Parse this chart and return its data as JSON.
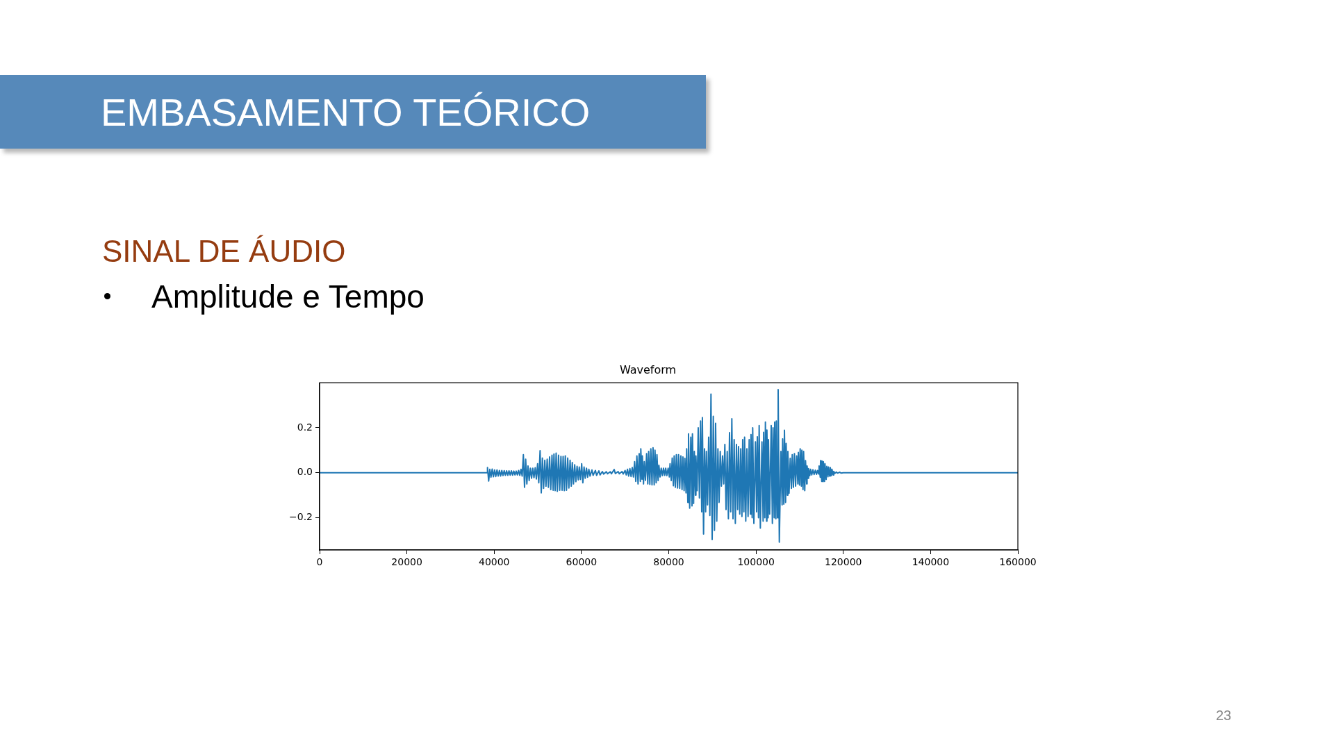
{
  "chart_data": {
    "type": "line",
    "title": "Waveform",
    "annotations": [
      "EMBASAMENTO TEÓRICO",
      "SINAL DE ÁUDIO",
      "Amplitude e Tempo",
      "23"
    ],
    "xlim": [
      0,
      160000
    ],
    "xticks": [
      0,
      20000,
      40000,
      60000,
      80000,
      100000,
      120000,
      140000,
      160000
    ],
    "ylim": [
      -0.344,
      0.4
    ],
    "yticks": [
      {
        "value": -0.2,
        "label": "−0.2"
      },
      {
        "value": 0,
        "label": "0.0"
      },
      {
        "value": 0.2,
        "label": "0.2"
      }
    ],
    "x": [
      0,
      38400,
      38470,
      38740,
      39000,
      39270,
      39550,
      39820,
      40100,
      40370,
      40650,
      40920,
      41200,
      41470,
      41750,
      42020,
      42300,
      42570,
      42850,
      43120,
      43400,
      43670,
      43950,
      44220,
      44500,
      44770,
      45050,
      45320,
      45600,
      45870,
      46150,
      46420,
      46690,
      46960,
      47220,
      47490,
      47750,
      48020,
      48300,
      48570,
      48850,
      49120,
      49400,
      49670,
      49950,
      50220,
      50520,
      50790,
      51050,
      51320,
      51600,
      51870,
      52150,
      52420,
      52700,
      52970,
      53250,
      53520,
      53700,
      53970,
      54200,
      54470,
      54750,
      55020,
      55300,
      55570,
      55800,
      56070,
      56300,
      56570,
      56850,
      57120,
      57400,
      57670,
      57900,
      58170,
      58450,
      58720,
      59000,
      59270,
      59500,
      59770,
      60050,
      60320,
      60600,
      60870,
      61150,
      61420,
      61700,
      61970,
      62400,
      62670,
      63200,
      63470,
      64000,
      64270,
      64800,
      65070,
      65700,
      65970,
      66600,
      66870,
      67500,
      67770,
      68400,
      68670,
      69300,
      69570,
      70000,
      70270,
      70550,
      70820,
      71100,
      71370,
      71640,
      71910,
      72180,
      72450,
      72700,
      72970,
      73230,
      73500,
      73600,
      73870,
      73950,
      74220,
      74400,
      74670,
      74930,
      75200,
      75400,
      75670,
      75900,
      76170,
      76400,
      76670,
      76850,
      77120,
      77300,
      77570,
      77750,
      78020,
      78280,
      78550,
      78800,
      79070,
      79300,
      79570,
      79870,
      80140,
      80300,
      80570,
      80800,
      81070,
      81250,
      81520,
      81750,
      82020,
      82250,
      82520,
      82780,
      83050,
      83250,
      83520,
      83700,
      83970,
      84110,
      84380,
      84530,
      84800,
      85060,
      85330,
      85430,
      85700,
      85860,
      86130,
      86230,
      86500,
      86760,
      87030,
      87290,
      87560,
      87710,
      87980,
      88190,
      88460,
      88620,
      88890,
      89150,
      89420,
      89680,
      89950,
      90210,
      90480,
      90740,
      91010,
      91270,
      91540,
      91800,
      92070,
      92330,
      92600,
      92860,
      93130,
      93400,
      93670,
      93930,
      94200,
      94460,
      94730,
      94990,
      95260,
      95520,
      95790,
      96000,
      96270,
      96500,
      96770,
      96950,
      97220,
      97380,
      97650,
      97910,
      98180,
      98440,
      98710,
      98850,
      99120,
      99240,
      99510,
      99870,
      100140,
      100300,
      100570,
      100720,
      100990,
      101360,
      101630,
      101750,
      102020,
      102150,
      102420,
      102500,
      102770,
      102850,
      103120,
      103480,
      103750,
      103900,
      104170,
      104280,
      104550,
      104650,
      104920,
      105070,
      105340,
      105710,
      105980,
      106100,
      106370,
      106510,
      106780,
      106900,
      107170,
      107300,
      107570,
      107840,
      108110,
      108300,
      108570,
      108800,
      109070,
      109320,
      109590,
      109700,
      109970,
      110120,
      110390,
      110500,
      110770,
      110900,
      111170,
      111340,
      111610,
      111700,
      111970,
      112050,
      112320,
      112500,
      112770,
      113040,
      113310,
      113600,
      113870,
      114100,
      114370,
      114450,
      114720,
      114790,
      115060,
      115100,
      115370,
      115430,
      115700,
      115800,
      116070,
      116220,
      116490,
      116600,
      116870,
      117010,
      117280,
      117400,
      117670,
      117810,
      118080,
      118400,
      118670,
      119200,
      119470,
      120000,
      160000
    ],
    "series": [
      {
        "color": "#1f77b4",
        "values": [
          0,
          0,
          0.023,
          -0.037,
          0.015,
          -0.02,
          0.016,
          -0.018,
          0.012,
          -0.017,
          0.012,
          -0.015,
          0.01,
          -0.015,
          0.01,
          -0.013,
          0.009,
          -0.012,
          0.008,
          -0.012,
          0.008,
          -0.011,
          0.008,
          -0.011,
          0.007,
          -0.01,
          0.007,
          -0.01,
          0.01,
          -0.012,
          0.015,
          -0.015,
          0.08,
          -0.065,
          0.06,
          -0.05,
          0.03,
          -0.035,
          0.02,
          -0.025,
          0.02,
          -0.022,
          0.022,
          -0.028,
          0.04,
          -0.045,
          0.098,
          -0.09,
          0.065,
          -0.07,
          0.055,
          -0.06,
          0.06,
          -0.065,
          0.07,
          -0.075,
          0.078,
          -0.078,
          0.083,
          -0.08,
          0.087,
          -0.083,
          0.078,
          -0.078,
          0.072,
          -0.078,
          0.072,
          -0.08,
          0.075,
          -0.078,
          0.065,
          -0.068,
          0.055,
          -0.06,
          0.045,
          -0.05,
          0.035,
          -0.04,
          0.028,
          -0.032,
          0.025,
          -0.03,
          0.04,
          -0.045,
          0.025,
          -0.025,
          0.02,
          -0.02,
          0.015,
          -0.015,
          0.012,
          -0.012,
          0.01,
          -0.012,
          0.008,
          -0.01,
          0.005,
          -0.006,
          0.004,
          -0.005,
          0.004,
          -0.005,
          0.014,
          -0.004,
          0.005,
          -0.005,
          0.005,
          -0.006,
          0.01,
          -0.01,
          0.015,
          -0.015,
          0.018,
          -0.017,
          0.023,
          -0.019,
          0.049,
          -0.039,
          0.075,
          -0.05,
          0.085,
          -0.039,
          0.106,
          -0.029,
          0.075,
          -0.05,
          0.049,
          -0.034,
          0.085,
          -0.05,
          0.095,
          -0.052,
          0.106,
          -0.054,
          0.111,
          -0.054,
          0.1,
          -0.045,
          0.08,
          -0.035,
          0.033,
          -0.019,
          0.02,
          -0.013,
          0.02,
          -0.012,
          0.02,
          -0.013,
          0.02,
          -0.019,
          0.04,
          -0.035,
          0.065,
          -0.058,
          0.075,
          -0.065,
          0.08,
          -0.068,
          0.08,
          -0.07,
          0.075,
          -0.075,
          0.07,
          -0.08,
          0.064,
          -0.09,
          0.106,
          -0.132,
          0.173,
          -0.158,
          0.158,
          -0.148,
          0.173,
          -0.137,
          0.095,
          -0.1,
          0.075,
          -0.08,
          0.2,
          -0.112,
          0.23,
          -0.174,
          0.245,
          -0.273,
          0.106,
          -0.174,
          0.095,
          -0.143,
          0.158,
          -0.19,
          0.35,
          -0.298,
          0.251,
          -0.257,
          0.22,
          -0.216,
          0.106,
          -0.132,
          0.095,
          -0.06,
          0.075,
          -0.05,
          0.126,
          -0.164,
          0.095,
          -0.205,
          0.178,
          -0.174,
          0.24,
          -0.205,
          0.147,
          -0.226,
          0.126,
          -0.164,
          0.116,
          -0.184,
          0.106,
          -0.195,
          0.147,
          -0.174,
          0.158,
          -0.216,
          0.106,
          -0.195,
          0.147,
          -0.184,
          0.17,
          -0.2,
          0.2,
          -0.226,
          0.137,
          -0.174,
          0.16,
          -0.2,
          0.21,
          -0.247,
          0.137,
          -0.216,
          0.18,
          -0.2,
          0.225,
          -0.216,
          0.19,
          -0.2,
          0.147,
          -0.184,
          0.21,
          -0.226,
          0.2,
          -0.2,
          0.225,
          -0.205,
          0.23,
          -0.2,
          0.37,
          -0.309,
          0.095,
          -0.143,
          0.15,
          -0.14,
          0.189,
          -0.132,
          0.13,
          -0.1,
          0.095,
          -0.091,
          0.064,
          -0.07,
          0.08,
          -0.065,
          0.085,
          -0.06,
          0.075,
          -0.05,
          0.09,
          -0.055,
          0.106,
          -0.06,
          0.1,
          -0.075,
          0.095,
          -0.08,
          0.054,
          -0.05,
          0.03,
          -0.025,
          0.018,
          -0.013,
          0.015,
          -0.01,
          0.013,
          -0.008,
          0.011,
          -0.007,
          0.01,
          -0.006,
          0.03,
          -0.02,
          0.054,
          -0.039,
          0.052,
          -0.04,
          0.049,
          -0.039,
          0.04,
          -0.03,
          0.028,
          -0.018,
          0.025,
          -0.015,
          0.023,
          -0.013,
          0.015,
          -0.01,
          0.006,
          -0.003,
          0.003,
          -0.002,
          0.002,
          -0.002,
          0,
          0
        ]
      }
    ]
  }
}
